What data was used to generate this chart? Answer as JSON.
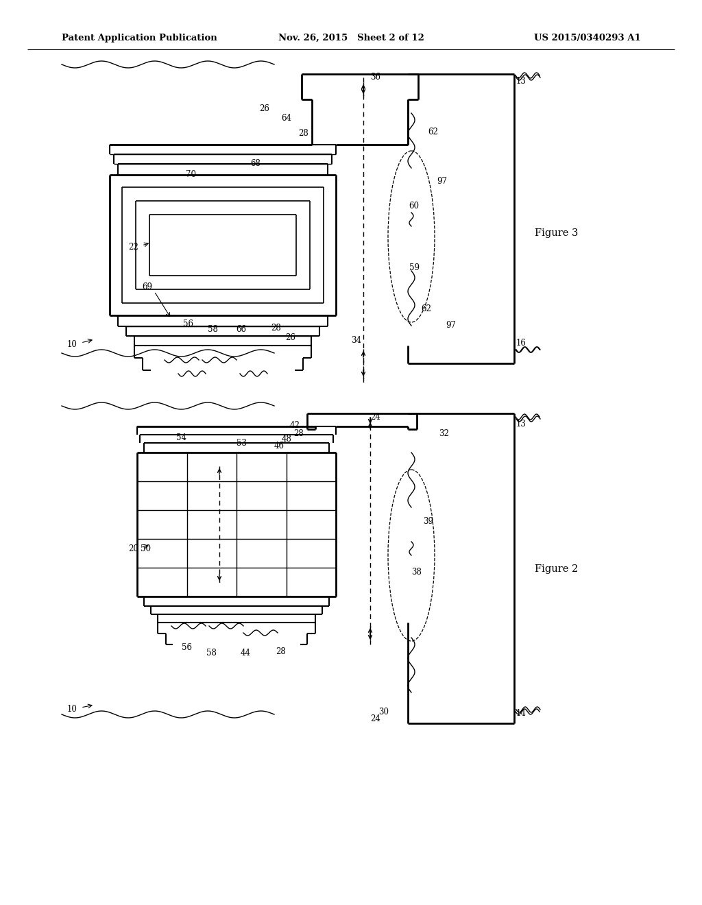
{
  "bg_color": "#ffffff",
  "lc": "#000000",
  "header_left": "Patent Application Publication",
  "header_mid": "Nov. 26, 2015   Sheet 2 of 12",
  "header_right": "US 2015/0340293 A1"
}
